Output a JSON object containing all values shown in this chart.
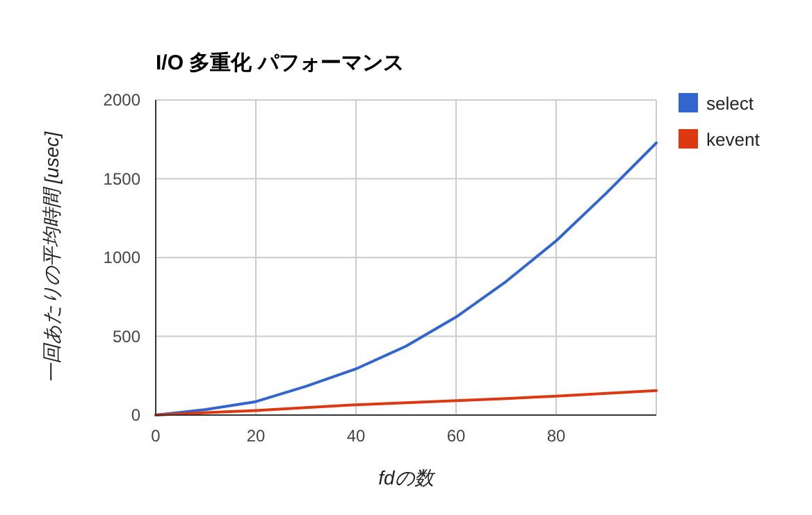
{
  "chart_data": {
    "type": "line",
    "title": "I/O 多重化 パフォーマンス",
    "xlabel": "fdの数",
    "ylabel": "一回あたりの平均時間 [usec]",
    "x": [
      0,
      10,
      20,
      30,
      40,
      50,
      60,
      70,
      80,
      90,
      100
    ],
    "series": [
      {
        "name": "select",
        "color": "#3366cc",
        "values": [
          0,
          35,
          85,
          182,
          293,
          437,
          622,
          848,
          1106,
          1408,
          1727
        ]
      },
      {
        "name": "kevent",
        "color": "#dc3912",
        "values": [
          0,
          15,
          29,
          47,
          65,
          78,
          91,
          105,
          120,
          138,
          155
        ]
      }
    ],
    "xlim": [
      0,
      100
    ],
    "ylim": [
      0,
      2000
    ],
    "xticks": [
      0,
      20,
      40,
      60,
      80
    ],
    "yticks": [
      0,
      500,
      1000,
      1500,
      2000
    ],
    "grid": true,
    "legend": "top right"
  }
}
